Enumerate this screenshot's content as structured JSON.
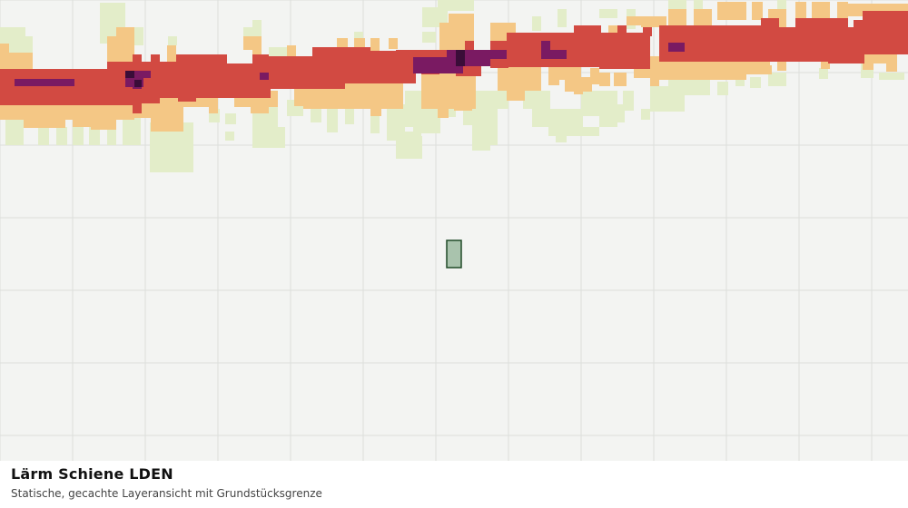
{
  "title": "Lärm Schiene LDEN",
  "subtitle": "Statische, gecachte Layeransicht mit Grundstücksgrenze",
  "colors": {
    "background": "#f3f4f2",
    "grid": "#dcdedb",
    "class_low": "#e3edc9",
    "class_medium": "#f4c785",
    "class_high": "#d24a42",
    "class_very_high": "#7a1a62",
    "class_extreme": "#3a0d38",
    "parcel_fill": "#a9c3ad",
    "parcel_stroke": "#1f4a27"
  }
}
